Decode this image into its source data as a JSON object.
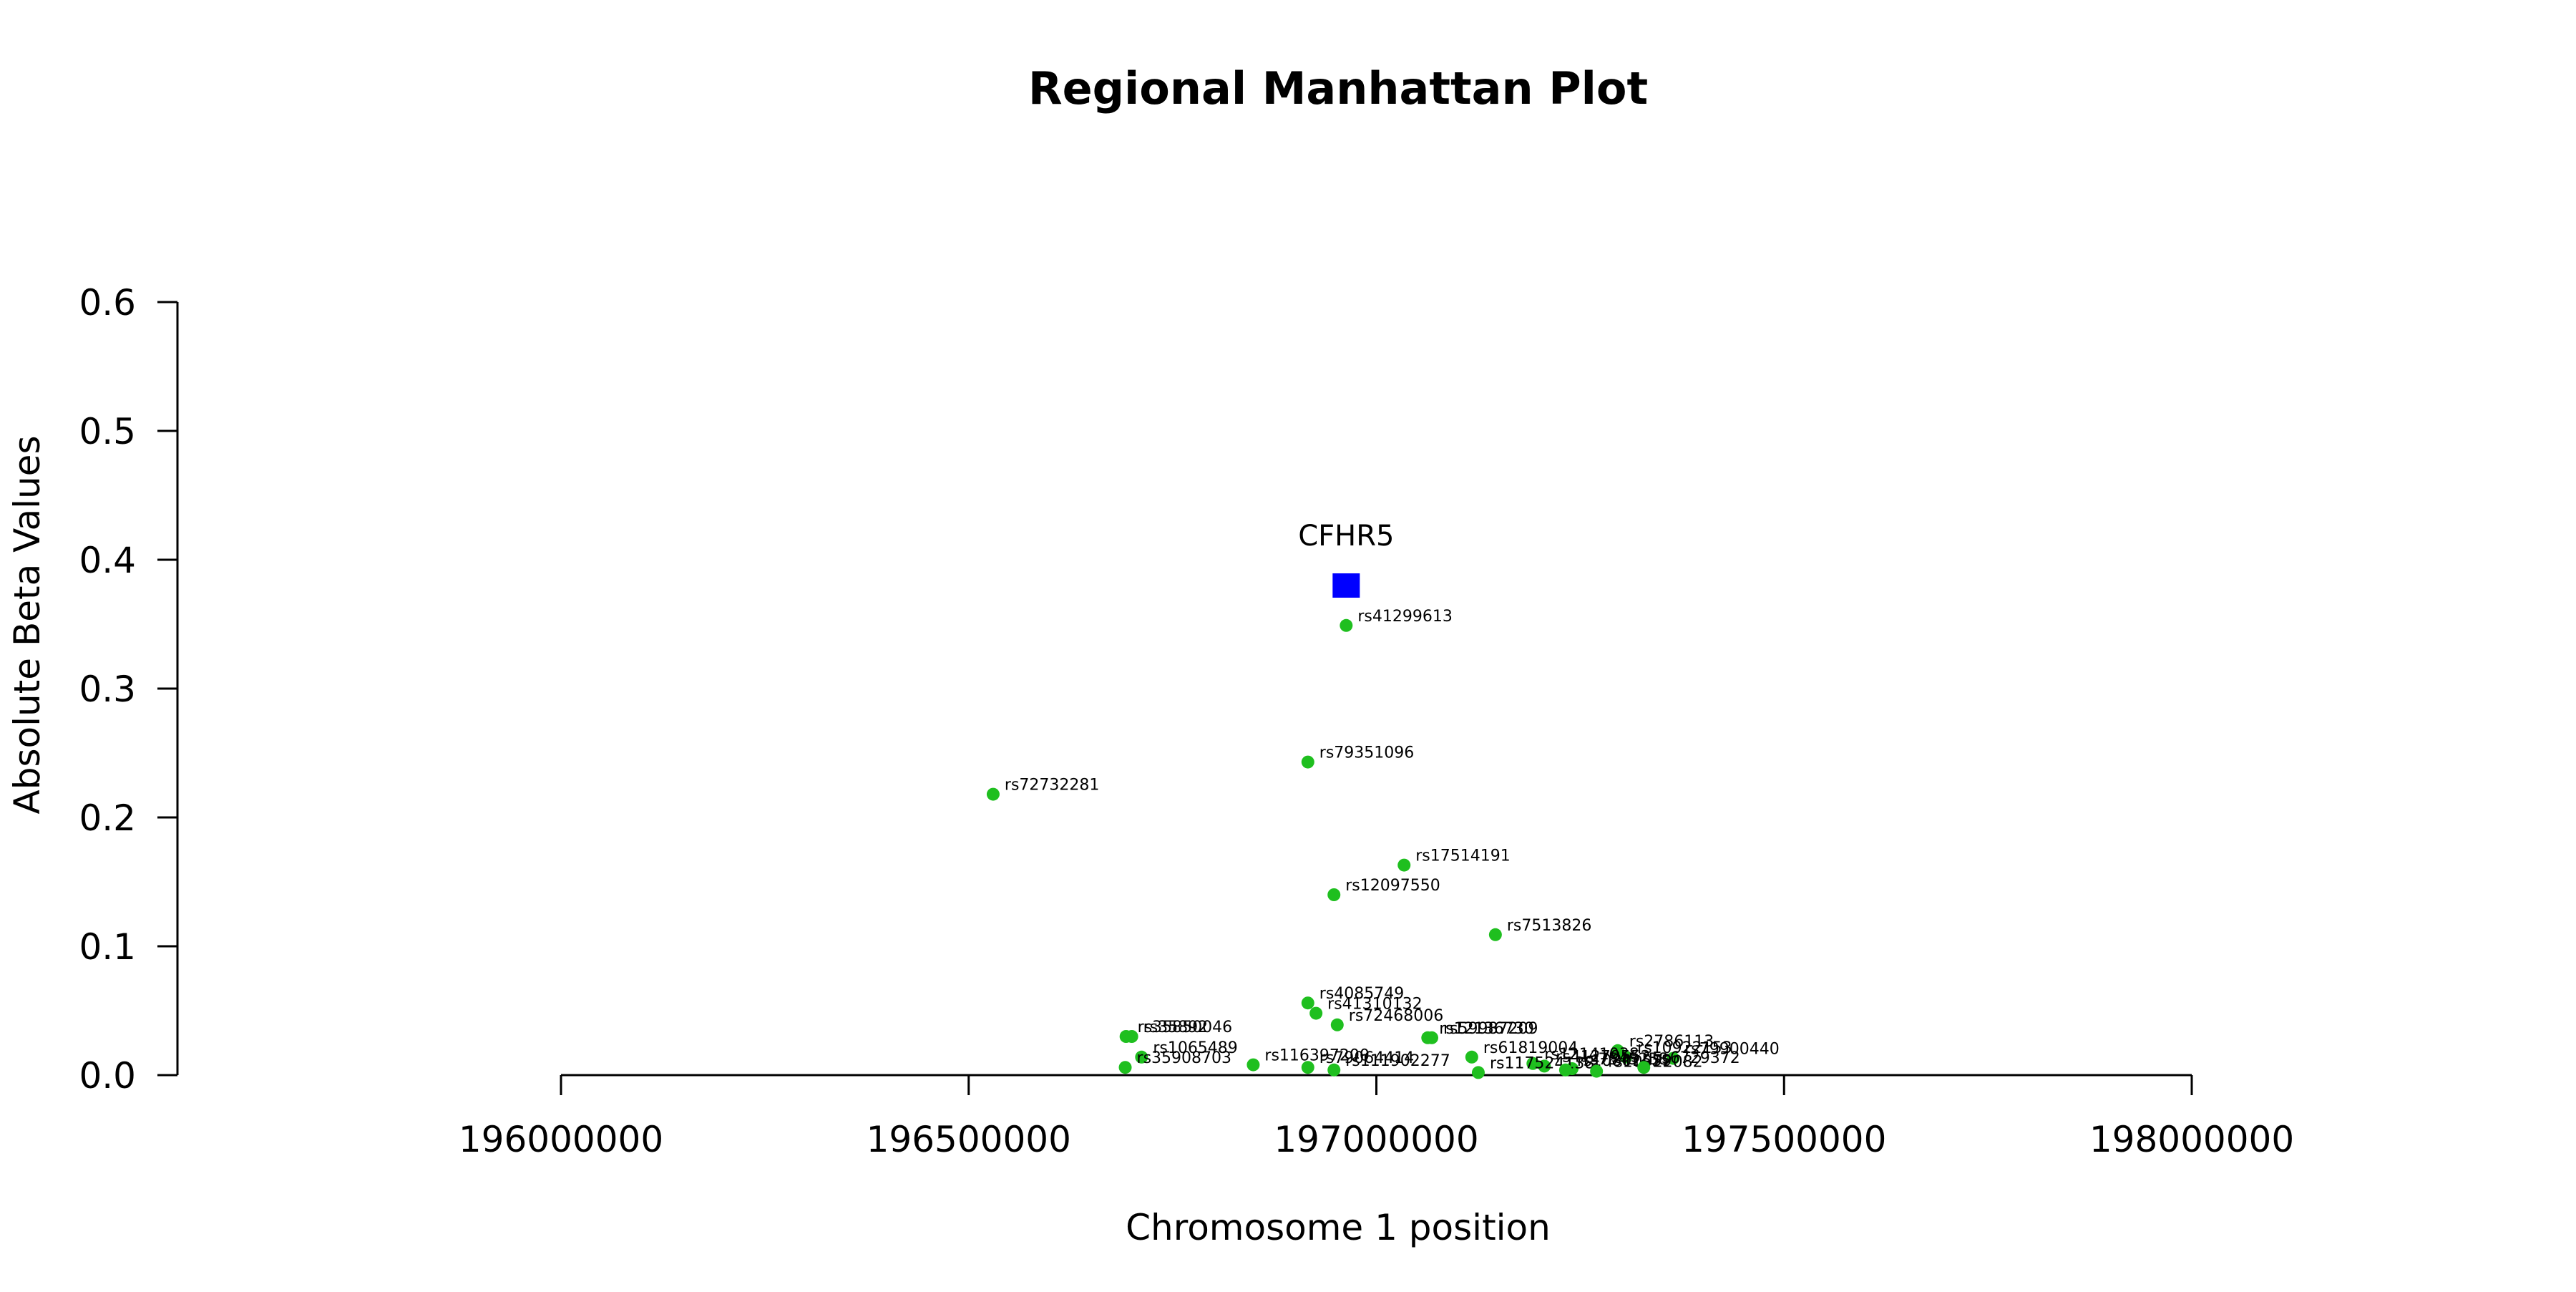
{
  "chart_data": {
    "type": "scatter",
    "title": "Regional Manhattan Plot",
    "xlabel": "Chromosome 1 position",
    "ylabel": "Absolute Beta Values",
    "xlim": [
      196000000,
      198000000
    ],
    "ylim": [
      0,
      0.6
    ],
    "xticks": [
      196000000,
      196500000,
      197000000,
      197500000,
      198000000
    ],
    "xtick_labels": [
      "196000000",
      "196500000",
      "197000000",
      "197500000",
      "198000000"
    ],
    "yticks": [
      0.0,
      0.1,
      0.2,
      0.3,
      0.4,
      0.5,
      0.6
    ],
    "ytick_labels": [
      "0.0",
      "0.1",
      "0.2",
      "0.3",
      "0.4",
      "0.5",
      "0.6"
    ],
    "grid": false,
    "colors": {
      "snp": "#1fbf1f",
      "gene": "#0000ff"
    },
    "gene": {
      "name": "CFHR5",
      "x": 196963000,
      "y": 0.38
    },
    "points": [
      {
        "label": "rs41299613",
        "x": 196963000,
        "y": 0.349
      },
      {
        "label": "rs79351096",
        "x": 196916000,
        "y": 0.243
      },
      {
        "label": "rs72732281",
        "x": 196530000,
        "y": 0.218
      },
      {
        "label": "rs17514191",
        "x": 197034000,
        "y": 0.163
      },
      {
        "label": "rs12097550",
        "x": 196948000,
        "y": 0.14
      },
      {
        "label": "rs7513826",
        "x": 197146000,
        "y": 0.109
      },
      {
        "label": "rs4085749",
        "x": 196916000,
        "y": 0.056
      },
      {
        "label": "rs41310132",
        "x": 196926000,
        "y": 0.048
      },
      {
        "label": "rs72468006",
        "x": 196952000,
        "y": 0.039
      },
      {
        "label": "rs12136730",
        "x": 197063000,
        "y": 0.029
      },
      {
        "label": "rs59987209",
        "x": 197068000,
        "y": 0.029
      },
      {
        "label": "rs35850046",
        "x": 196693000,
        "y": 0.03
      },
      {
        "label": "rs35892",
        "x": 196700000,
        "y": 0.03
      },
      {
        "label": "rs2786113",
        "x": 197296000,
        "y": 0.019
      },
      {
        "label": "rs10922153",
        "x": 197306000,
        "y": 0.014
      },
      {
        "label": "rs79900440",
        "x": 197364000,
        "y": 0.013
      },
      {
        "label": "rs1065489",
        "x": 196712000,
        "y": 0.014
      },
      {
        "label": "rs61819004",
        "x": 197117000,
        "y": 0.014
      },
      {
        "label": "rs116397200",
        "x": 196849000,
        "y": 0.008
      },
      {
        "label": "rs35908703",
        "x": 196692000,
        "y": 0.006
      },
      {
        "label": "rs79064414",
        "x": 196916000,
        "y": 0.006
      },
      {
        "label": "rs111902277",
        "x": 196948000,
        "y": 0.004
      },
      {
        "label": "rs12141038",
        "x": 197192000,
        "y": 0.009
      },
      {
        "label": "rs41279552",
        "x": 197206000,
        "y": 0.007
      },
      {
        "label": "rs7545258",
        "x": 197240000,
        "y": 0.005
      },
      {
        "label": "rs117524138",
        "x": 197125000,
        "y": 0.002
      },
      {
        "label": "rs10801559",
        "x": 197232000,
        "y": 0.004
      },
      {
        "label": "rs10922082",
        "x": 197270000,
        "y": 0.003
      },
      {
        "label": "rs6729372",
        "x": 197328000,
        "y": 0.006
      }
    ]
  }
}
